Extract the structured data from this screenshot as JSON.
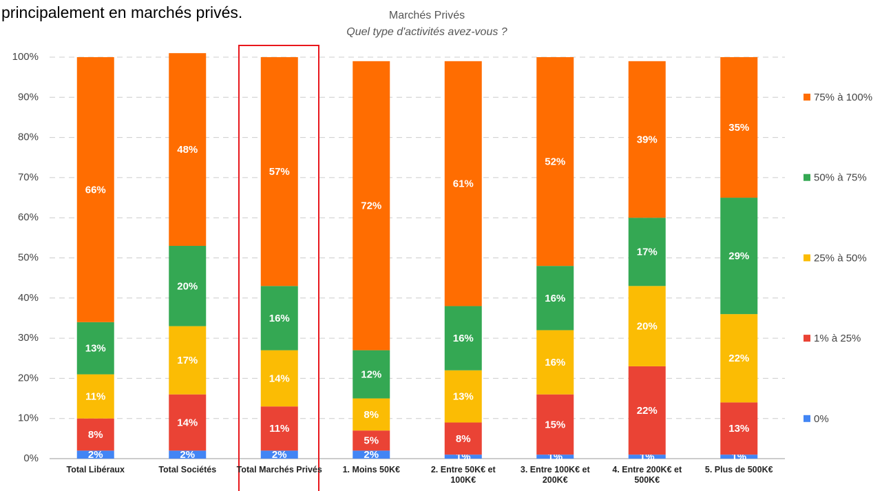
{
  "chart_data": {
    "type": "stacked_bar",
    "annotation": "principalement en marchés privés.",
    "title": "Marchés Privés",
    "subtitle": "Quel type d'activités avez-vous ?",
    "categories": [
      "Total Libéraux",
      "Total Sociétés",
      "Total Marchés Privés",
      "1. Moins 50K€",
      "2. Entre 50K€ et 100K€",
      "3. Entre 100K€ et 200K€",
      "4. Entre 200K€ et 500K€",
      "5. Plus de 500K€"
    ],
    "series": [
      {
        "name": "0%",
        "color": "#4285f4",
        "values": [
          2,
          2,
          2,
          2,
          1,
          1,
          1,
          1
        ],
        "value_labels": [
          "2%",
          "2%",
          "2%",
          "2%",
          "1%",
          "1%",
          "1%",
          "1%"
        ]
      },
      {
        "name": "1% à 25%",
        "color": "#ea4335",
        "values": [
          8,
          14,
          11,
          5,
          8,
          15,
          22,
          13
        ],
        "value_labels": [
          "8%",
          "14%",
          "11%",
          "5%",
          "8%",
          "15%",
          "22%",
          "13%"
        ]
      },
      {
        "name": "25% à 50%",
        "color": "#fbbc04",
        "values": [
          11,
          17,
          14,
          8,
          13,
          16,
          20,
          22
        ],
        "value_labels": [
          "11%",
          "17%",
          "14%",
          "8%",
          "13%",
          "16%",
          "20%",
          "22%"
        ]
      },
      {
        "name": "50% à 75%",
        "color": "#34a853",
        "values": [
          13,
          20,
          16,
          12,
          16,
          16,
          17,
          29
        ],
        "value_labels": [
          "13%",
          "20%",
          "16%",
          "12%",
          "16%",
          "16%",
          "17%",
          "29%"
        ]
      },
      {
        "name": "75% à 100%",
        "color": "#ff6d01",
        "values": [
          66,
          48,
          57,
          72,
          61,
          52,
          39,
          35
        ],
        "value_labels": [
          "66%",
          "48%",
          "57%",
          "72%",
          "61%",
          "52%",
          "39%",
          "35%"
        ]
      }
    ],
    "ylim": [
      0,
      100
    ],
    "yticks": [
      {
        "value": 0,
        "label": "0%"
      },
      {
        "value": 10,
        "label": "10%"
      },
      {
        "value": 20,
        "label": "20%"
      },
      {
        "value": 30,
        "label": "30%"
      },
      {
        "value": 40,
        "label": "40%"
      },
      {
        "value": 50,
        "label": "50%"
      },
      {
        "value": 60,
        "label": "60%"
      },
      {
        "value": 70,
        "label": "70%"
      },
      {
        "value": 80,
        "label": "80%"
      },
      {
        "value": 90,
        "label": "90%"
      },
      {
        "value": 100,
        "label": "100%"
      }
    ],
    "grid": true,
    "legend": "right"
  }
}
